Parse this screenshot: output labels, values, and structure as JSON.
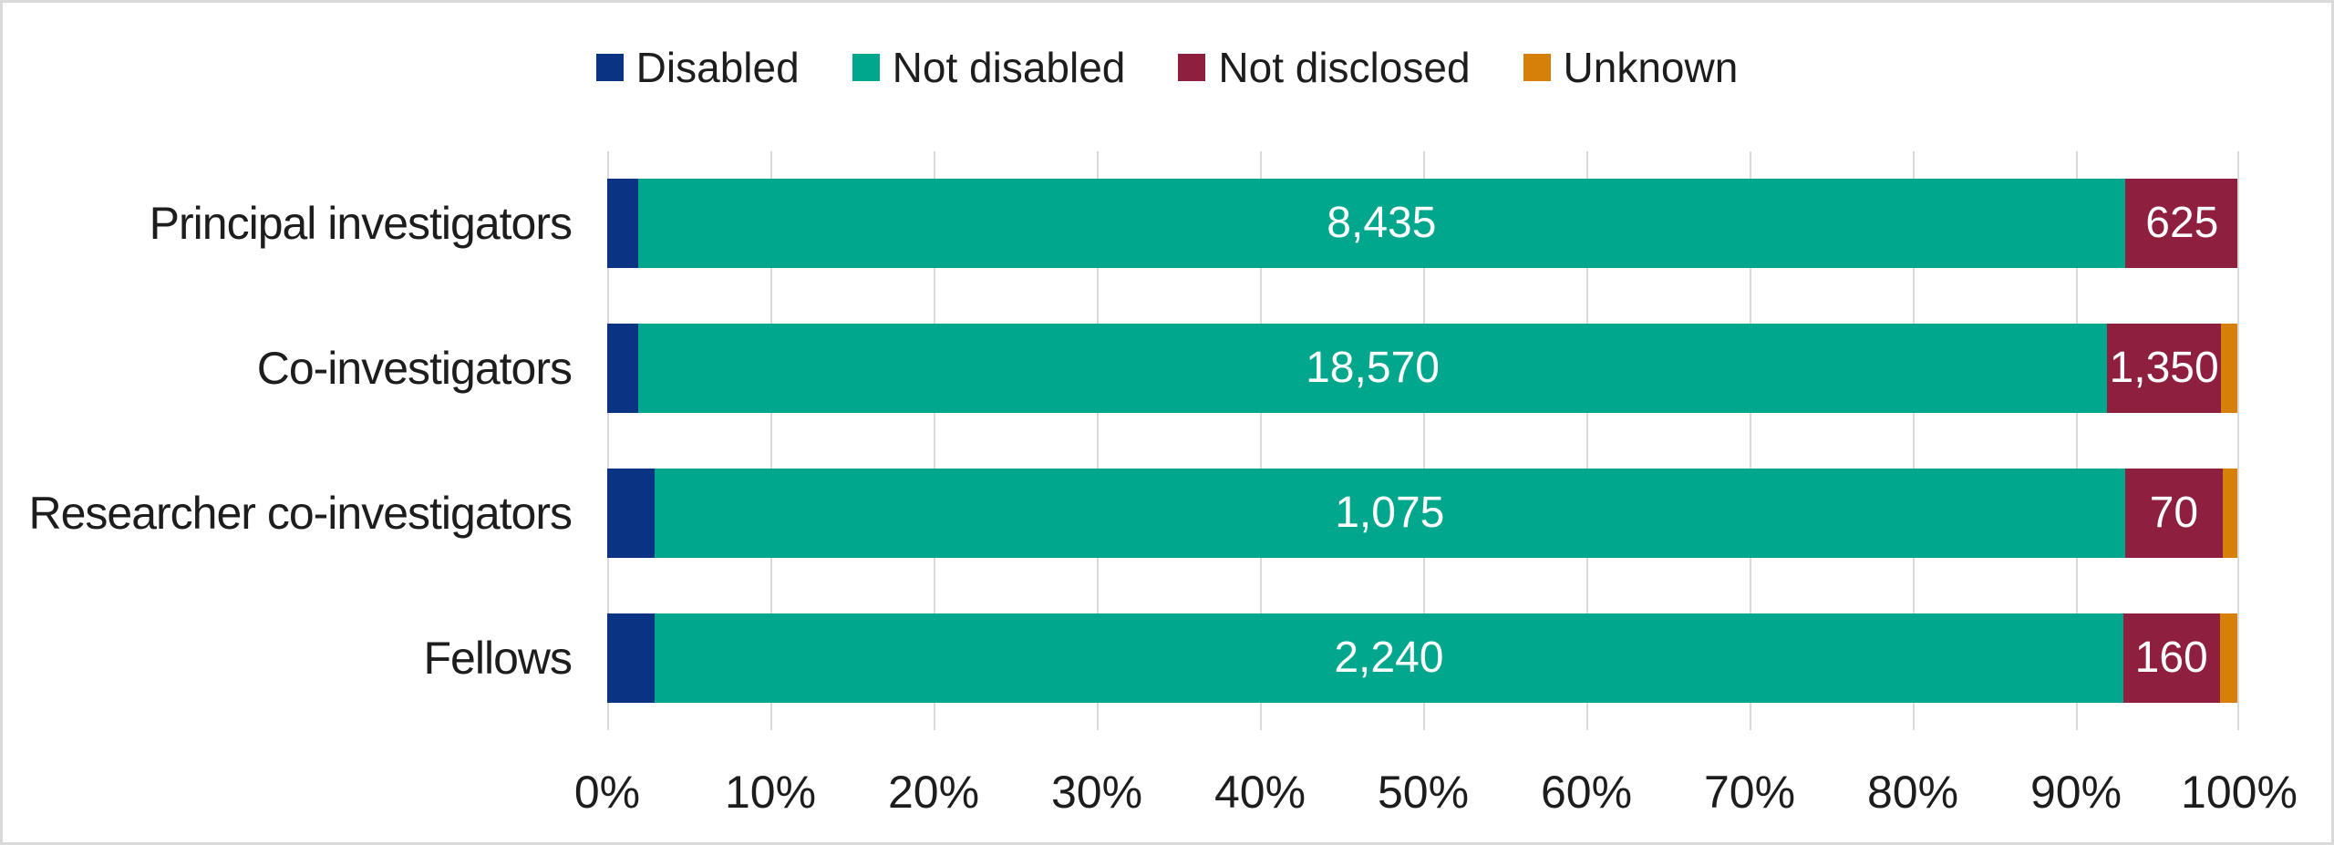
{
  "chart_data": {
    "type": "bar",
    "subtype": "horizontal-100pct-stacked",
    "title": "",
    "xlabel": "",
    "ylabel": "",
    "xlim": [
      0,
      100
    ],
    "grid": "vertical",
    "legend_position": "top",
    "categories": [
      "Principal investigators",
      "Co-investigators",
      "Researcher co-investigators",
      "Fellows"
    ],
    "x_axis": {
      "ticks": [
        "0%",
        "10%",
        "20%",
        "30%",
        "40%",
        "50%",
        "60%",
        "70%",
        "80%",
        "90%",
        "100%"
      ]
    },
    "series": [
      {
        "name": "Disabled",
        "color": "#0b3383",
        "percent_widths": [
          1.9,
          1.9,
          2.9,
          2.9
        ],
        "data_labels": [
          "",
          "",
          "",
          ""
        ]
      },
      {
        "name": "Not disabled",
        "color": "#01a78c",
        "percent_widths": [
          91.1,
          90.0,
          90.1,
          90.0
        ],
        "data_labels": [
          "8,435",
          "18,570",
          "1,075",
          "2,240"
        ]
      },
      {
        "name": "Not disclosed",
        "color": "#8e1f3f",
        "percent_widths": [
          7.0,
          7.0,
          6.0,
          5.9
        ],
        "data_labels": [
          "625",
          "1,350",
          "70",
          "160"
        ]
      },
      {
        "name": "Unknown",
        "color": "#d6800a",
        "percent_widths": [
          0.0,
          1.1,
          1.0,
          1.2
        ],
        "data_labels": [
          "",
          "",
          "",
          ""
        ]
      }
    ]
  },
  "colors": {
    "gridline": "#d9d9d9",
    "frame_border": "#d9d9d9",
    "bar_label_text": "#ffffff",
    "axis_text": "#1d1d1d"
  }
}
